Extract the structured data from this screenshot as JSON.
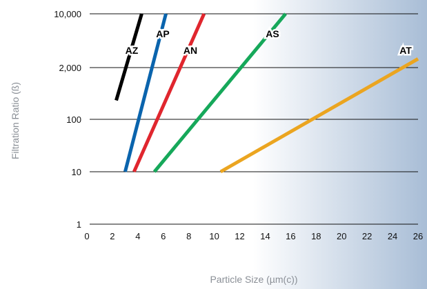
{
  "chart_data": {
    "type": "line",
    "title": "",
    "xlabel": "Particle Size (µm(c))",
    "ylabel": "Filtration Ratio (ß)",
    "x_ticks": [
      "0",
      "2",
      "4",
      "6",
      "8",
      "10",
      "12",
      "14",
      "16",
      "18",
      "20",
      "22",
      "24",
      "26"
    ],
    "y_ticks": [
      {
        "value": 1,
        "label": "1"
      },
      {
        "value": 10,
        "label": "10"
      },
      {
        "value": 100,
        "label": "100"
      },
      {
        "value": 2000,
        "label": "2,000"
      },
      {
        "value": 10000,
        "label": "10,000"
      }
    ],
    "xlim": [
      0,
      26
    ],
    "ylim_labels": [
      "1",
      "10,000"
    ],
    "y_scale": "stepped log (labeled gridlines evenly spaced)",
    "grid": "horizontal gridlines at labeled ticks",
    "series": [
      {
        "name": "AZ",
        "color": "#000000",
        "points": [
          [
            2.3,
            300
          ],
          [
            4.3,
            10000
          ]
        ]
      },
      {
        "name": "AP",
        "color": "#0a64ad",
        "points": [
          [
            3.0,
            10
          ],
          [
            6.2,
            10000
          ]
        ]
      },
      {
        "name": "AN",
        "color": "#e0262e",
        "points": [
          [
            3.7,
            10
          ],
          [
            9.2,
            10000
          ]
        ]
      },
      {
        "name": "AS",
        "color": "#16a85a",
        "points": [
          [
            5.3,
            10
          ],
          [
            15.6,
            10000
          ]
        ]
      },
      {
        "name": "AT",
        "color": "#eba520",
        "points": [
          [
            10.5,
            10
          ],
          [
            26.0,
            2600
          ]
        ]
      }
    ]
  }
}
